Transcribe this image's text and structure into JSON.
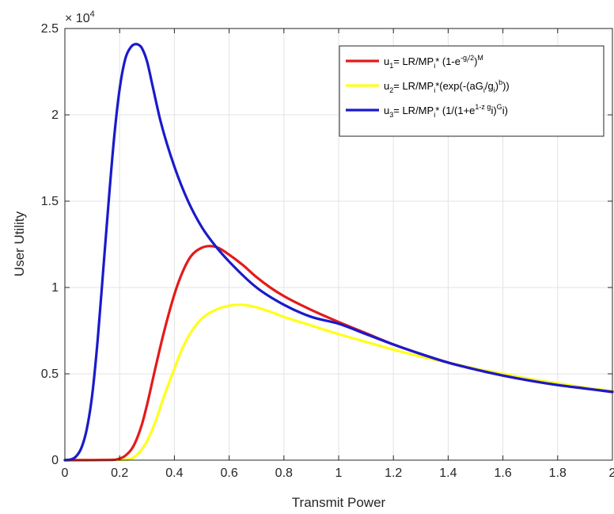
{
  "chart_data": {
    "type": "line",
    "xlabel": "Transmit Power",
    "ylabel": "User Utility",
    "exponent_label": "× 10",
    "exponent_power": "4",
    "xlim": [
      0,
      2
    ],
    "ylim": [
      0,
      25000
    ],
    "x_ticks": [
      0,
      0.2,
      0.4,
      0.6,
      0.8,
      1,
      1.2,
      1.4,
      1.6,
      1.8,
      2
    ],
    "x_tick_labels": [
      "0",
      "0.2",
      "0.4",
      "0.6",
      "0.8",
      "1",
      "1.2",
      "1.4",
      "1.6",
      "1.8",
      "2"
    ],
    "y_ticks": [
      0,
      5000,
      10000,
      15000,
      20000,
      25000
    ],
    "y_tick_labels": [
      "0",
      "0.5",
      "1",
      "1.5",
      "2",
      "2.5"
    ],
    "grid": true,
    "legend_position": "top-right",
    "series": [
      {
        "name": "u1 = LR/MPi * (1-e^(-gi/2))^M",
        "legend": {
          "sym": "u",
          "sub": "1",
          "parts": [
            [
              "= LR/MP",
              ""
            ],
            [
              "i",
              "sub"
            ],
            [
              "* (1-e",
              ""
            ],
            [
              "-g",
              "sup"
            ],
            [
              "i",
              "supsub"
            ],
            [
              "/2",
              "sup"
            ],
            [
              ")",
              ""
            ],
            [
              "M",
              "sup"
            ]
          ]
        },
        "color": "#e41a1a",
        "x": [
          0,
          0.18,
          0.2,
          0.22,
          0.25,
          0.28,
          0.3,
          0.33,
          0.36,
          0.4,
          0.43,
          0.46,
          0.5,
          0.53,
          0.56,
          0.6,
          0.65,
          0.7,
          0.75,
          0.8,
          0.9,
          1,
          1.1,
          1.2,
          1.3,
          1.4,
          1.5,
          1.6,
          1.7,
          1.8,
          1.9,
          2
        ],
        "values": [
          0,
          20,
          90,
          250,
          800,
          2000,
          3200,
          5300,
          7300,
          9600,
          10900,
          11800,
          12300,
          12400,
          12300,
          11900,
          11300,
          10600,
          10000,
          9500,
          8700,
          8000,
          7350,
          6700,
          6150,
          5650,
          5250,
          4900,
          4600,
          4350,
          4150,
          3950
        ]
      },
      {
        "name": "u2 = LR/MPi *(exp(-(aGi/gi)^b))",
        "legend": {
          "sym": "u",
          "sub": "2",
          "parts": [
            [
              "= LR/MP",
              ""
            ],
            [
              "i",
              "sub"
            ],
            [
              "*(exp(-(aG",
              ""
            ],
            [
              "i",
              "sub"
            ],
            [
              "/g",
              ""
            ],
            [
              "i",
              "sub"
            ],
            [
              ")",
              ""
            ],
            [
              "b",
              "sup"
            ],
            [
              "))",
              ""
            ]
          ]
        },
        "color": "#ffff1a",
        "x": [
          0,
          0.22,
          0.25,
          0.28,
          0.3,
          0.33,
          0.36,
          0.4,
          0.43,
          0.46,
          0.5,
          0.55,
          0.6,
          0.63,
          0.66,
          0.7,
          0.75,
          0.8,
          0.9,
          1,
          1.1,
          1.2,
          1.3,
          1.4,
          1.5,
          1.6,
          1.7,
          1.8,
          1.9,
          2
        ],
        "values": [
          0,
          20,
          150,
          600,
          1100,
          2200,
          3600,
          5300,
          6500,
          7400,
          8200,
          8700,
          8950,
          9000,
          8980,
          8850,
          8600,
          8300,
          7800,
          7300,
          6850,
          6400,
          6000,
          5650,
          5300,
          5000,
          4700,
          4450,
          4200,
          4000
        ]
      },
      {
        "name": "u3 = LR/MPi * (1/(1+e^(1-z gi))^Gi)",
        "legend": {
          "sym": "u",
          "sub": "3",
          "parts": [
            [
              "= LR/MP",
              ""
            ],
            [
              "i",
              "sub"
            ],
            [
              "* (1/(1+e",
              ""
            ],
            [
              "1-z  g",
              "sup"
            ],
            [
              "i",
              ""
            ],
            [
              ")",
              ""
            ],
            [
              "G",
              "sup"
            ],
            [
              "i)",
              ""
            ]
          ]
        },
        "color": "#1a1acc",
        "x": [
          0,
          0.02,
          0.04,
          0.06,
          0.08,
          0.1,
          0.12,
          0.14,
          0.16,
          0.18,
          0.2,
          0.22,
          0.24,
          0.26,
          0.27,
          0.28,
          0.3,
          0.32,
          0.35,
          0.4,
          0.45,
          0.5,
          0.55,
          0.6,
          0.7,
          0.8,
          0.9,
          1,
          1.1,
          1.2,
          1.3,
          1.4,
          1.5,
          1.6,
          1.7,
          1.8,
          1.9,
          2
        ],
        "values": [
          0,
          30,
          200,
          700,
          1800,
          3800,
          7000,
          11000,
          15000,
          18700,
          21500,
          23200,
          23900,
          24100,
          24050,
          23900,
          23100,
          21700,
          19600,
          17000,
          15000,
          13500,
          12400,
          11500,
          10000,
          9000,
          8300,
          7900,
          7300,
          6700,
          6150,
          5650,
          5250,
          4900,
          4600,
          4350,
          4150,
          3950
        ]
      }
    ]
  }
}
